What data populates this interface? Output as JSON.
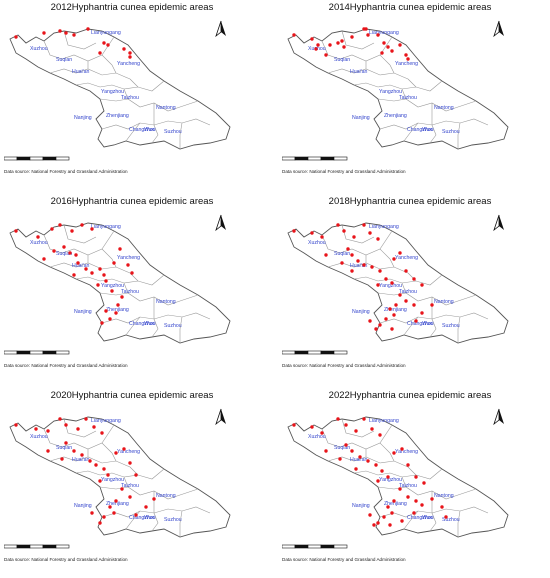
{
  "figure": {
    "panels": [
      {
        "title": "2012Hyphantria cunea epidemic areas",
        "year": 2012
      },
      {
        "title": "2014Hyphantria cunea epidemic areas",
        "year": 2014
      },
      {
        "title": "2016Hyphantria cunea epidemic areas",
        "year": 2016
      },
      {
        "title": "2018Hyphantria cunea epidemic areas",
        "year": 2018
      },
      {
        "title": "2020Hyphantria cunea epidemic areas",
        "year": 2020
      },
      {
        "title": "2022Hyphantria cunea epidemic areas",
        "year": 2022
      }
    ],
    "data_source": "Data source: National Forestry and Grassland Administration",
    "city_labels": [
      "Lianyungang",
      "Xuzhou",
      "Suqian",
      "Yancheng",
      "Huai'an",
      "Yangzhou",
      "Taizhou",
      "Nantong",
      "Nanjing",
      "Zhenjiang",
      "Changzhou",
      "Wuxi",
      "Suzhou"
    ],
    "colors": {
      "outbreak_point": "#e8141a",
      "city_label": "#3344cc",
      "boundary": "#555555",
      "inner_boundary": "#9a9a9a"
    },
    "icons": {
      "north_arrow": "north-arrow-icon",
      "scale_bar": "scale-bar"
    }
  }
}
